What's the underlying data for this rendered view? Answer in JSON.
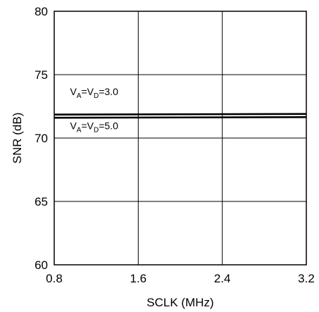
{
  "chart_data": {
    "type": "line",
    "title": "",
    "xlabel": "SCLK (MHz)",
    "ylabel": "SNR (dB)",
    "xlim": [
      0.8,
      3.2
    ],
    "ylim": [
      60,
      80
    ],
    "x_ticks": [
      "0.8",
      "1.6",
      "2.4",
      "3.2"
    ],
    "y_ticks": [
      "60",
      "65",
      "70",
      "75",
      "80"
    ],
    "grid": true,
    "series": [
      {
        "x": [
          0.8,
          3.2
        ],
        "values": [
          71.85,
          71.9
        ]
      },
      {
        "x": [
          0.8,
          3.2
        ],
        "values": [
          71.6,
          71.65
        ]
      }
    ],
    "annotations": [
      {
        "label_parts": [
          "V",
          "A",
          "=V",
          "D",
          "=3.0"
        ],
        "x": 0.85,
        "y": 73.4
      },
      {
        "label_parts": [
          "V",
          "A",
          "=V",
          "D",
          "=5.0"
        ],
        "x": 0.85,
        "y": 70.7
      }
    ]
  }
}
